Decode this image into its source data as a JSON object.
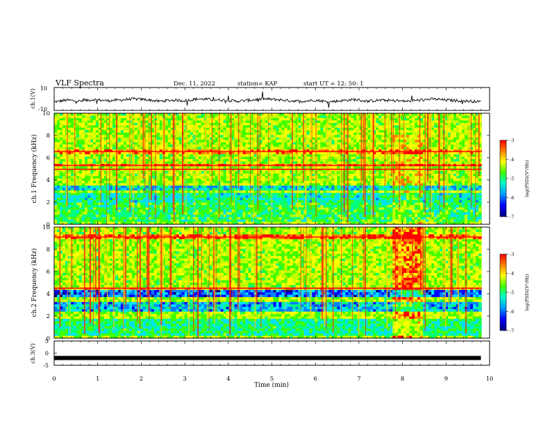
{
  "header": {
    "title": "VLF Spectra",
    "date": "Dec. 11, 2022",
    "station": "station= KAP",
    "start": "start  UT =   12: 50: 1"
  },
  "chart_data": [
    {
      "type": "line",
      "panel": "ch1-waveform",
      "ylabel": "ch.1(V)",
      "ylim": [
        -10,
        10
      ],
      "ytick_labels": [
        "-10",
        "10"
      ],
      "xlim": [
        0,
        10
      ],
      "description_values": "noisy amplitude trace between about -4 and 3 V",
      "series": [
        {
          "x": [
            0,
            0.3,
            0.6,
            0.9,
            1.2,
            1.5,
            1.8,
            2.1,
            2.4,
            2.7,
            3.0,
            3.3,
            3.6,
            3.9,
            4.2,
            4.5,
            4.8,
            5.1,
            5.4,
            5.7,
            6.0,
            6.3,
            6.6,
            6.9,
            7.2,
            7.5,
            7.8,
            8.1,
            8.4,
            8.7,
            9.0,
            9.3,
            9.6,
            9.8
          ],
          "y": [
            -2.5,
            -1,
            -2,
            -0.5,
            -1.5,
            -1,
            0,
            -0.5,
            -2,
            -1,
            -1.5,
            0,
            -0.5,
            -1,
            -2,
            -1,
            0,
            -0.5,
            -1.5,
            -2,
            -1,
            -2.5,
            -1.5,
            -0.5,
            -2,
            -1,
            -1.5,
            -2,
            -1,
            0,
            -1,
            -1.5,
            -2,
            -2.5
          ]
        }
      ]
    },
    {
      "type": "heatmap",
      "panel": "ch1-spectrogram",
      "ylabel": "ch.1 Frequency (kHz)",
      "ytick_labels": [
        "0",
        "2",
        "4",
        "6",
        "8",
        "10"
      ],
      "ylim": [
        0,
        10
      ],
      "xlim": [
        0,
        10
      ],
      "colorbar": {
        "label": "log(PSD)(V²/Hz)",
        "range": [
          -7,
          -3
        ],
        "tick_labels": [
          "-3",
          "-4",
          "-5",
          "-6",
          "-7"
        ]
      },
      "bands_khz": [
        {
          "f_low": 6.4,
          "f_high": 6.7,
          "level": -3.6
        },
        {
          "f_low": 5.2,
          "f_high": 5.4,
          "level": -3.5
        },
        {
          "f_low": 4.9,
          "f_high": 5.0,
          "level": -3.7
        },
        {
          "f_low": 3.0,
          "f_high": 3.4,
          "level": -5.6
        },
        {
          "f_low": 2.0,
          "f_high": 2.8,
          "level": -5.3
        },
        {
          "f_low": 0.3,
          "f_high": 1.9,
          "level": -5.0
        }
      ]
    },
    {
      "type": "heatmap",
      "panel": "ch2-spectrogram",
      "ylabel": "ch.2 Frequency (kHz)",
      "ytick_labels": [
        "0",
        "2",
        "4",
        "6",
        "8",
        "10"
      ],
      "ylim": [
        0,
        10
      ],
      "xlim": [
        0,
        10
      ],
      "colorbar": {
        "label": "log(PSD)(V²/Hz)",
        "range": [
          -7,
          -3
        ],
        "tick_labels": [
          "-3",
          "-4",
          "-5",
          "-6",
          "-7"
        ]
      },
      "bands_khz": [
        {
          "f_low": 8.9,
          "f_high": 9.3,
          "level": -3.4
        },
        {
          "f_low": 4.4,
          "f_high": 4.6,
          "level": -3.8
        },
        {
          "f_low": 3.6,
          "f_high": 4.4,
          "level": -6.2
        },
        {
          "f_low": 2.4,
          "f_high": 3.2,
          "level": -5.8
        },
        {
          "f_low": 0.3,
          "f_high": 1.8,
          "level": -5.2
        }
      ]
    },
    {
      "type": "line",
      "panel": "ch3-waveform",
      "ylabel": "ch.3(V)",
      "ylim": [
        -5,
        5
      ],
      "ytick_labels": [
        "-5",
        "0",
        "5"
      ],
      "xlim": [
        0,
        10
      ],
      "xlabel": "Time (min)",
      "xtick_labels": [
        "0",
        "1",
        "2",
        "3",
        "4",
        "5",
        "6",
        "7",
        "8",
        "9",
        "10"
      ],
      "series": [
        {
          "x": [
            0,
            9.8
          ],
          "y": [
            -2,
            -2
          ]
        }
      ]
    }
  ],
  "colors": {
    "palette": [
      "#000080",
      "#0000ff",
      "#0080ff",
      "#00e0ff",
      "#00ff80",
      "#40ff00",
      "#c0ff00",
      "#ffff00",
      "#ff8000",
      "#ff0000"
    ],
    "trace": "#000000",
    "axis": "#000000"
  }
}
